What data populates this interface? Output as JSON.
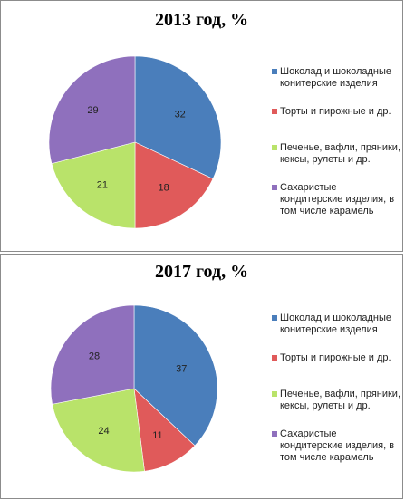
{
  "chart_data": [
    {
      "type": "pie",
      "title": "2013 год, %",
      "categories": [
        "Шоколад и шоколадные конитерские изделия",
        "Торты и пирожные и др.",
        "Печенье, вафли, пряники, кексы, рулеты и др.",
        "Сахаристые кондитерские изделия, в том числе карамель"
      ],
      "values": [
        32,
        18,
        21,
        29
      ],
      "colors": [
        "#4a7ebb",
        "#e05a5a",
        "#b9e36a",
        "#8f70bd"
      ],
      "legend_position": "right"
    },
    {
      "type": "pie",
      "title": "2017   год, %",
      "categories": [
        "Шоколад и шоколадные конитерские изделия",
        "Торты и пирожные и др.",
        "Печенье, вафли, пряники, кексы, рулеты и др.",
        "Сахаристые кондитерские изделия, в том числе карамель"
      ],
      "values": [
        37,
        11,
        24,
        28
      ],
      "colors": [
        "#4a7ebb",
        "#e05a5a",
        "#b9e36a",
        "#8f70bd"
      ],
      "legend_position": "right"
    }
  ]
}
